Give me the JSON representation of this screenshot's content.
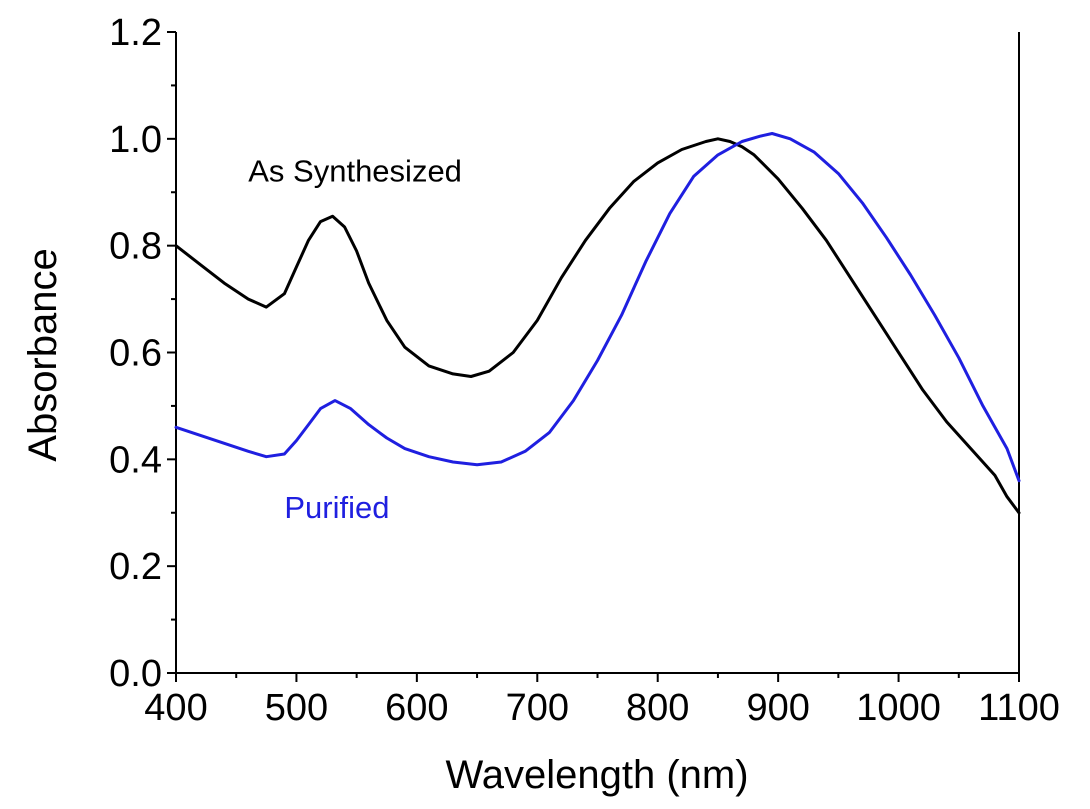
{
  "chart_data": {
    "type": "line",
    "xlabel": "Wavelength (nm)",
    "ylabel": "Absorbance",
    "xlim": [
      400,
      1100
    ],
    "ylim": [
      0.0,
      1.2
    ],
    "x_ticks": [
      400,
      500,
      600,
      700,
      800,
      900,
      1000,
      1100
    ],
    "x_tick_labels": [
      "400",
      "500",
      "600",
      "700",
      "800",
      "900",
      "1000",
      "1100"
    ],
    "y_ticks": [
      0.0,
      0.2,
      0.4,
      0.6,
      0.8,
      1.0,
      1.2
    ],
    "y_tick_labels": [
      "0.0",
      "0.2",
      "0.4",
      "0.6",
      "0.8",
      "1.0",
      "1.2"
    ],
    "grid": false,
    "annotations": [
      {
        "text": "As Synthesized",
        "color": "#000000",
        "x": 460,
        "y": 0.92
      },
      {
        "text": "Purified",
        "color": "#1f1fe0",
        "x": 490,
        "y": 0.29
      }
    ],
    "series": [
      {
        "color": "#000000",
        "x": [
          400,
          420,
          440,
          460,
          475,
          490,
          500,
          510,
          520,
          530,
          540,
          550,
          560,
          575,
          590,
          610,
          630,
          645,
          660,
          680,
          700,
          720,
          740,
          760,
          780,
          800,
          820,
          840,
          850,
          860,
          870,
          880,
          900,
          920,
          940,
          960,
          980,
          1000,
          1020,
          1040,
          1060,
          1080,
          1090,
          1100
        ],
        "y": [
          0.8,
          0.765,
          0.73,
          0.7,
          0.685,
          0.71,
          0.76,
          0.81,
          0.845,
          0.855,
          0.835,
          0.79,
          0.73,
          0.66,
          0.61,
          0.575,
          0.56,
          0.555,
          0.565,
          0.6,
          0.66,
          0.74,
          0.81,
          0.87,
          0.92,
          0.955,
          0.98,
          0.995,
          1.0,
          0.995,
          0.985,
          0.97,
          0.925,
          0.87,
          0.81,
          0.74,
          0.67,
          0.6,
          0.53,
          0.47,
          0.42,
          0.37,
          0.33,
          0.3
        ]
      },
      {
        "color": "#1f1fe0",
        "x": [
          400,
          420,
          440,
          460,
          475,
          490,
          500,
          510,
          520,
          532,
          545,
          560,
          575,
          590,
          610,
          630,
          650,
          670,
          690,
          710,
          730,
          750,
          770,
          790,
          810,
          830,
          850,
          870,
          885,
          895,
          910,
          930,
          950,
          970,
          990,
          1010,
          1030,
          1050,
          1070,
          1090,
          1100
        ],
        "y": [
          0.46,
          0.445,
          0.43,
          0.415,
          0.405,
          0.41,
          0.435,
          0.465,
          0.495,
          0.51,
          0.495,
          0.465,
          0.44,
          0.42,
          0.405,
          0.395,
          0.39,
          0.395,
          0.415,
          0.45,
          0.51,
          0.585,
          0.67,
          0.77,
          0.86,
          0.93,
          0.97,
          0.995,
          1.005,
          1.01,
          1.0,
          0.975,
          0.935,
          0.88,
          0.815,
          0.745,
          0.67,
          0.59,
          0.5,
          0.42,
          0.36
        ]
      }
    ]
  }
}
